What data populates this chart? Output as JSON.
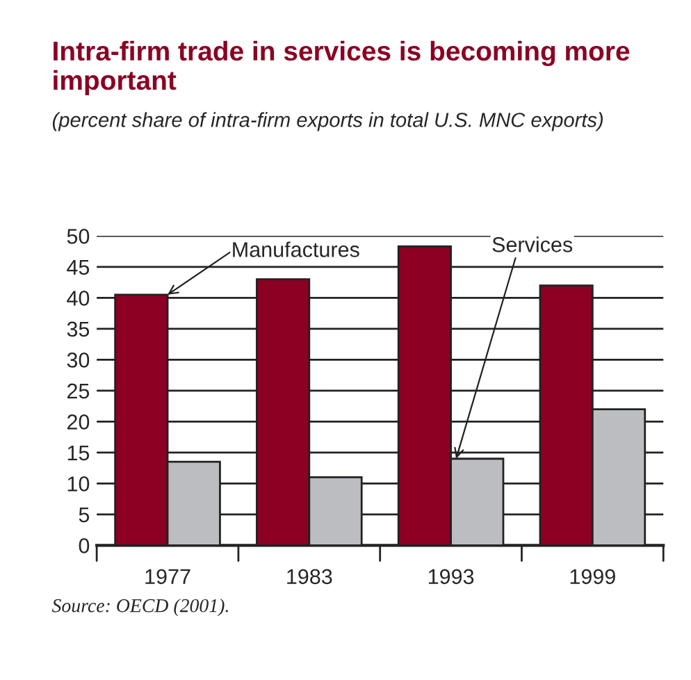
{
  "chart_data": {
    "type": "bar",
    "title": "Intra-firm trade in services is becoming more important",
    "subtitle": "(percent share of intra-firm exports in total U.S. MNC exports)",
    "categories": [
      "1977",
      "1983",
      "1993",
      "1999"
    ],
    "series": [
      {
        "color": "#8b0023",
        "values": [
          40.5,
          43,
          48.3,
          42
        ]
      },
      {
        "color": "#bcbdc1",
        "values": [
          13.5,
          11,
          14,
          22
        ]
      }
    ],
    "ylim": [
      0,
      50
    ],
    "yticks": [
      0,
      5,
      10,
      15,
      20,
      25,
      30,
      35,
      40,
      45,
      50
    ],
    "grid": "y",
    "annotations": [
      {
        "text": "Manufactures",
        "x": "1977",
        "y": 40.5
      },
      {
        "text": "Services",
        "x": "1993",
        "y": 14
      },
      "Source: OECD (2001)."
    ]
  }
}
